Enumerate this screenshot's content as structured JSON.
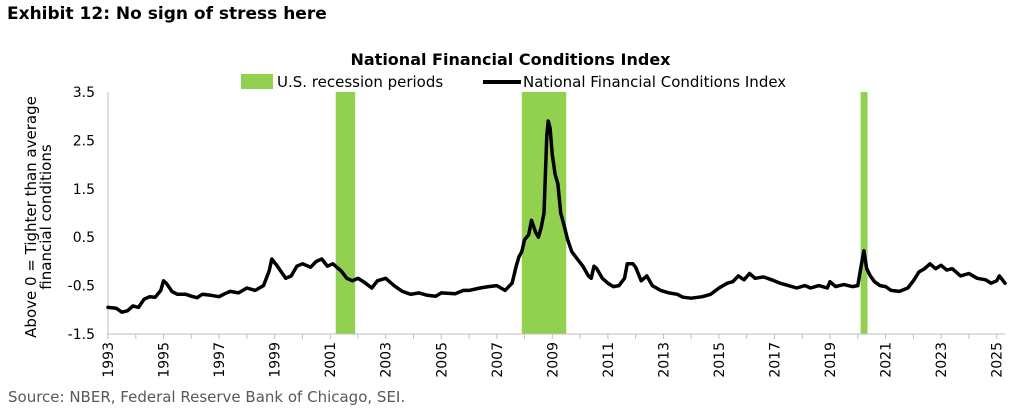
{
  "exhibit_title": "Exhibit 12: No sign of stress here",
  "source": "Source: NBER, Federal Reserve Bank of Chicago, SEI.",
  "colors": {
    "recession": "#92d050",
    "line": "#000000",
    "axis": "#bfbfbf"
  },
  "chart_data": {
    "type": "line",
    "title": "National Financial Conditions Index",
    "ylabel": "Above 0 = Tighter than average financial conditions",
    "xlabel": "",
    "ylim": [
      -1.5,
      3.5
    ],
    "xlim": [
      1993.0,
      2025.3
    ],
    "y_ticks": [
      "3.5",
      "2.5",
      "1.5",
      "0.5",
      "-0.5",
      "-1.5"
    ],
    "x_ticks": [
      "1993",
      "1995",
      "1997",
      "1999",
      "2001",
      "2003",
      "2005",
      "2007",
      "2009",
      "2011",
      "2013",
      "2015",
      "2017",
      "2019",
      "2021",
      "2023",
      "2025"
    ],
    "grid": false,
    "legend_position": "top-center",
    "legend": [
      {
        "name": "U.S. recession periods",
        "kind": "bar"
      },
      {
        "name": "National Financial Conditions Index",
        "kind": "line"
      }
    ],
    "recessions": [
      {
        "start": 2001.2,
        "end": 2001.9
      },
      {
        "start": 2007.9,
        "end": 2009.5
      },
      {
        "start": 2020.1,
        "end": 2020.35
      }
    ],
    "series": [
      {
        "name": "National Financial Conditions Index",
        "points": [
          [
            1993.0,
            -0.95
          ],
          [
            1993.3,
            -0.97
          ],
          [
            1993.5,
            -1.05
          ],
          [
            1993.7,
            -1.02
          ],
          [
            1993.9,
            -0.92
          ],
          [
            1994.1,
            -0.95
          ],
          [
            1994.3,
            -0.78
          ],
          [
            1994.5,
            -0.73
          ],
          [
            1994.7,
            -0.74
          ],
          [
            1994.9,
            -0.6
          ],
          [
            1995.0,
            -0.4
          ],
          [
            1995.1,
            -0.45
          ],
          [
            1995.3,
            -0.62
          ],
          [
            1995.5,
            -0.68
          ],
          [
            1995.8,
            -0.68
          ],
          [
            1996.0,
            -0.72
          ],
          [
            1996.2,
            -0.75
          ],
          [
            1996.4,
            -0.68
          ],
          [
            1996.7,
            -0.7
          ],
          [
            1997.0,
            -0.73
          ],
          [
            1997.2,
            -0.67
          ],
          [
            1997.4,
            -0.62
          ],
          [
            1997.7,
            -0.65
          ],
          [
            1998.0,
            -0.55
          ],
          [
            1998.3,
            -0.6
          ],
          [
            1998.6,
            -0.5
          ],
          [
            1998.8,
            -0.2
          ],
          [
            1998.9,
            0.05
          ],
          [
            1999.1,
            -0.1
          ],
          [
            1999.4,
            -0.35
          ],
          [
            1999.6,
            -0.3
          ],
          [
            1999.8,
            -0.1
          ],
          [
            2000.0,
            -0.05
          ],
          [
            2000.3,
            -0.12
          ],
          [
            2000.5,
            0.0
          ],
          [
            2000.7,
            0.05
          ],
          [
            2000.9,
            -0.1
          ],
          [
            2001.1,
            -0.05
          ],
          [
            2001.4,
            -0.2
          ],
          [
            2001.6,
            -0.35
          ],
          [
            2001.8,
            -0.4
          ],
          [
            2002.0,
            -0.35
          ],
          [
            2002.2,
            -0.42
          ],
          [
            2002.5,
            -0.55
          ],
          [
            2002.7,
            -0.4
          ],
          [
            2003.0,
            -0.35
          ],
          [
            2003.3,
            -0.5
          ],
          [
            2003.6,
            -0.62
          ],
          [
            2003.9,
            -0.68
          ],
          [
            2004.2,
            -0.65
          ],
          [
            2004.5,
            -0.7
          ],
          [
            2004.8,
            -0.72
          ],
          [
            2005.0,
            -0.65
          ],
          [
            2005.5,
            -0.67
          ],
          [
            2005.8,
            -0.6
          ],
          [
            2006.0,
            -0.6
          ],
          [
            2006.4,
            -0.55
          ],
          [
            2006.7,
            -0.52
          ],
          [
            2007.0,
            -0.5
          ],
          [
            2007.3,
            -0.6
          ],
          [
            2007.55,
            -0.45
          ],
          [
            2007.7,
            -0.1
          ],
          [
            2007.8,
            0.1
          ],
          [
            2007.9,
            0.2
          ],
          [
            2008.0,
            0.45
          ],
          [
            2008.15,
            0.55
          ],
          [
            2008.25,
            0.85
          ],
          [
            2008.4,
            0.6
          ],
          [
            2008.5,
            0.5
          ],
          [
            2008.6,
            0.7
          ],
          [
            2008.7,
            1.0
          ],
          [
            2008.75,
            1.8
          ],
          [
            2008.8,
            2.6
          ],
          [
            2008.85,
            2.9
          ],
          [
            2008.92,
            2.75
          ],
          [
            2009.0,
            2.2
          ],
          [
            2009.1,
            1.8
          ],
          [
            2009.2,
            1.6
          ],
          [
            2009.3,
            1.0
          ],
          [
            2009.4,
            0.8
          ],
          [
            2009.55,
            0.45
          ],
          [
            2009.7,
            0.2
          ],
          [
            2009.9,
            0.05
          ],
          [
            2010.1,
            -0.1
          ],
          [
            2010.3,
            -0.3
          ],
          [
            2010.4,
            -0.35
          ],
          [
            2010.5,
            -0.1
          ],
          [
            2010.6,
            -0.15
          ],
          [
            2010.8,
            -0.35
          ],
          [
            2011.0,
            -0.45
          ],
          [
            2011.2,
            -0.52
          ],
          [
            2011.4,
            -0.5
          ],
          [
            2011.6,
            -0.35
          ],
          [
            2011.7,
            -0.05
          ],
          [
            2011.9,
            -0.05
          ],
          [
            2012.0,
            -0.12
          ],
          [
            2012.2,
            -0.4
          ],
          [
            2012.4,
            -0.3
          ],
          [
            2012.6,
            -0.5
          ],
          [
            2012.9,
            -0.6
          ],
          [
            2013.2,
            -0.65
          ],
          [
            2013.5,
            -0.68
          ],
          [
            2013.7,
            -0.74
          ],
          [
            2014.0,
            -0.76
          ],
          [
            2014.4,
            -0.73
          ],
          [
            2014.7,
            -0.68
          ],
          [
            2015.0,
            -0.55
          ],
          [
            2015.3,
            -0.45
          ],
          [
            2015.5,
            -0.42
          ],
          [
            2015.7,
            -0.3
          ],
          [
            2015.9,
            -0.38
          ],
          [
            2016.1,
            -0.25
          ],
          [
            2016.3,
            -0.35
          ],
          [
            2016.6,
            -0.32
          ],
          [
            2016.9,
            -0.38
          ],
          [
            2017.2,
            -0.45
          ],
          [
            2017.5,
            -0.5
          ],
          [
            2017.8,
            -0.55
          ],
          [
            2018.1,
            -0.5
          ],
          [
            2018.3,
            -0.55
          ],
          [
            2018.6,
            -0.5
          ],
          [
            2018.9,
            -0.55
          ],
          [
            2019.0,
            -0.42
          ],
          [
            2019.2,
            -0.52
          ],
          [
            2019.5,
            -0.48
          ],
          [
            2019.8,
            -0.52
          ],
          [
            2020.0,
            -0.5
          ],
          [
            2020.12,
            -0.1
          ],
          [
            2020.22,
            0.22
          ],
          [
            2020.32,
            -0.15
          ],
          [
            2020.45,
            -0.3
          ],
          [
            2020.6,
            -0.42
          ],
          [
            2020.8,
            -0.5
          ],
          [
            2021.0,
            -0.52
          ],
          [
            2021.2,
            -0.6
          ],
          [
            2021.5,
            -0.62
          ],
          [
            2021.8,
            -0.55
          ],
          [
            2022.0,
            -0.4
          ],
          [
            2022.2,
            -0.22
          ],
          [
            2022.4,
            -0.15
          ],
          [
            2022.6,
            -0.05
          ],
          [
            2022.8,
            -0.15
          ],
          [
            2023.0,
            -0.08
          ],
          [
            2023.2,
            -0.18
          ],
          [
            2023.4,
            -0.15
          ],
          [
            2023.7,
            -0.3
          ],
          [
            2024.0,
            -0.25
          ],
          [
            2024.3,
            -0.35
          ],
          [
            2024.6,
            -0.38
          ],
          [
            2024.8,
            -0.45
          ],
          [
            2025.0,
            -0.4
          ],
          [
            2025.1,
            -0.3
          ],
          [
            2025.3,
            -0.45
          ]
        ]
      }
    ]
  }
}
